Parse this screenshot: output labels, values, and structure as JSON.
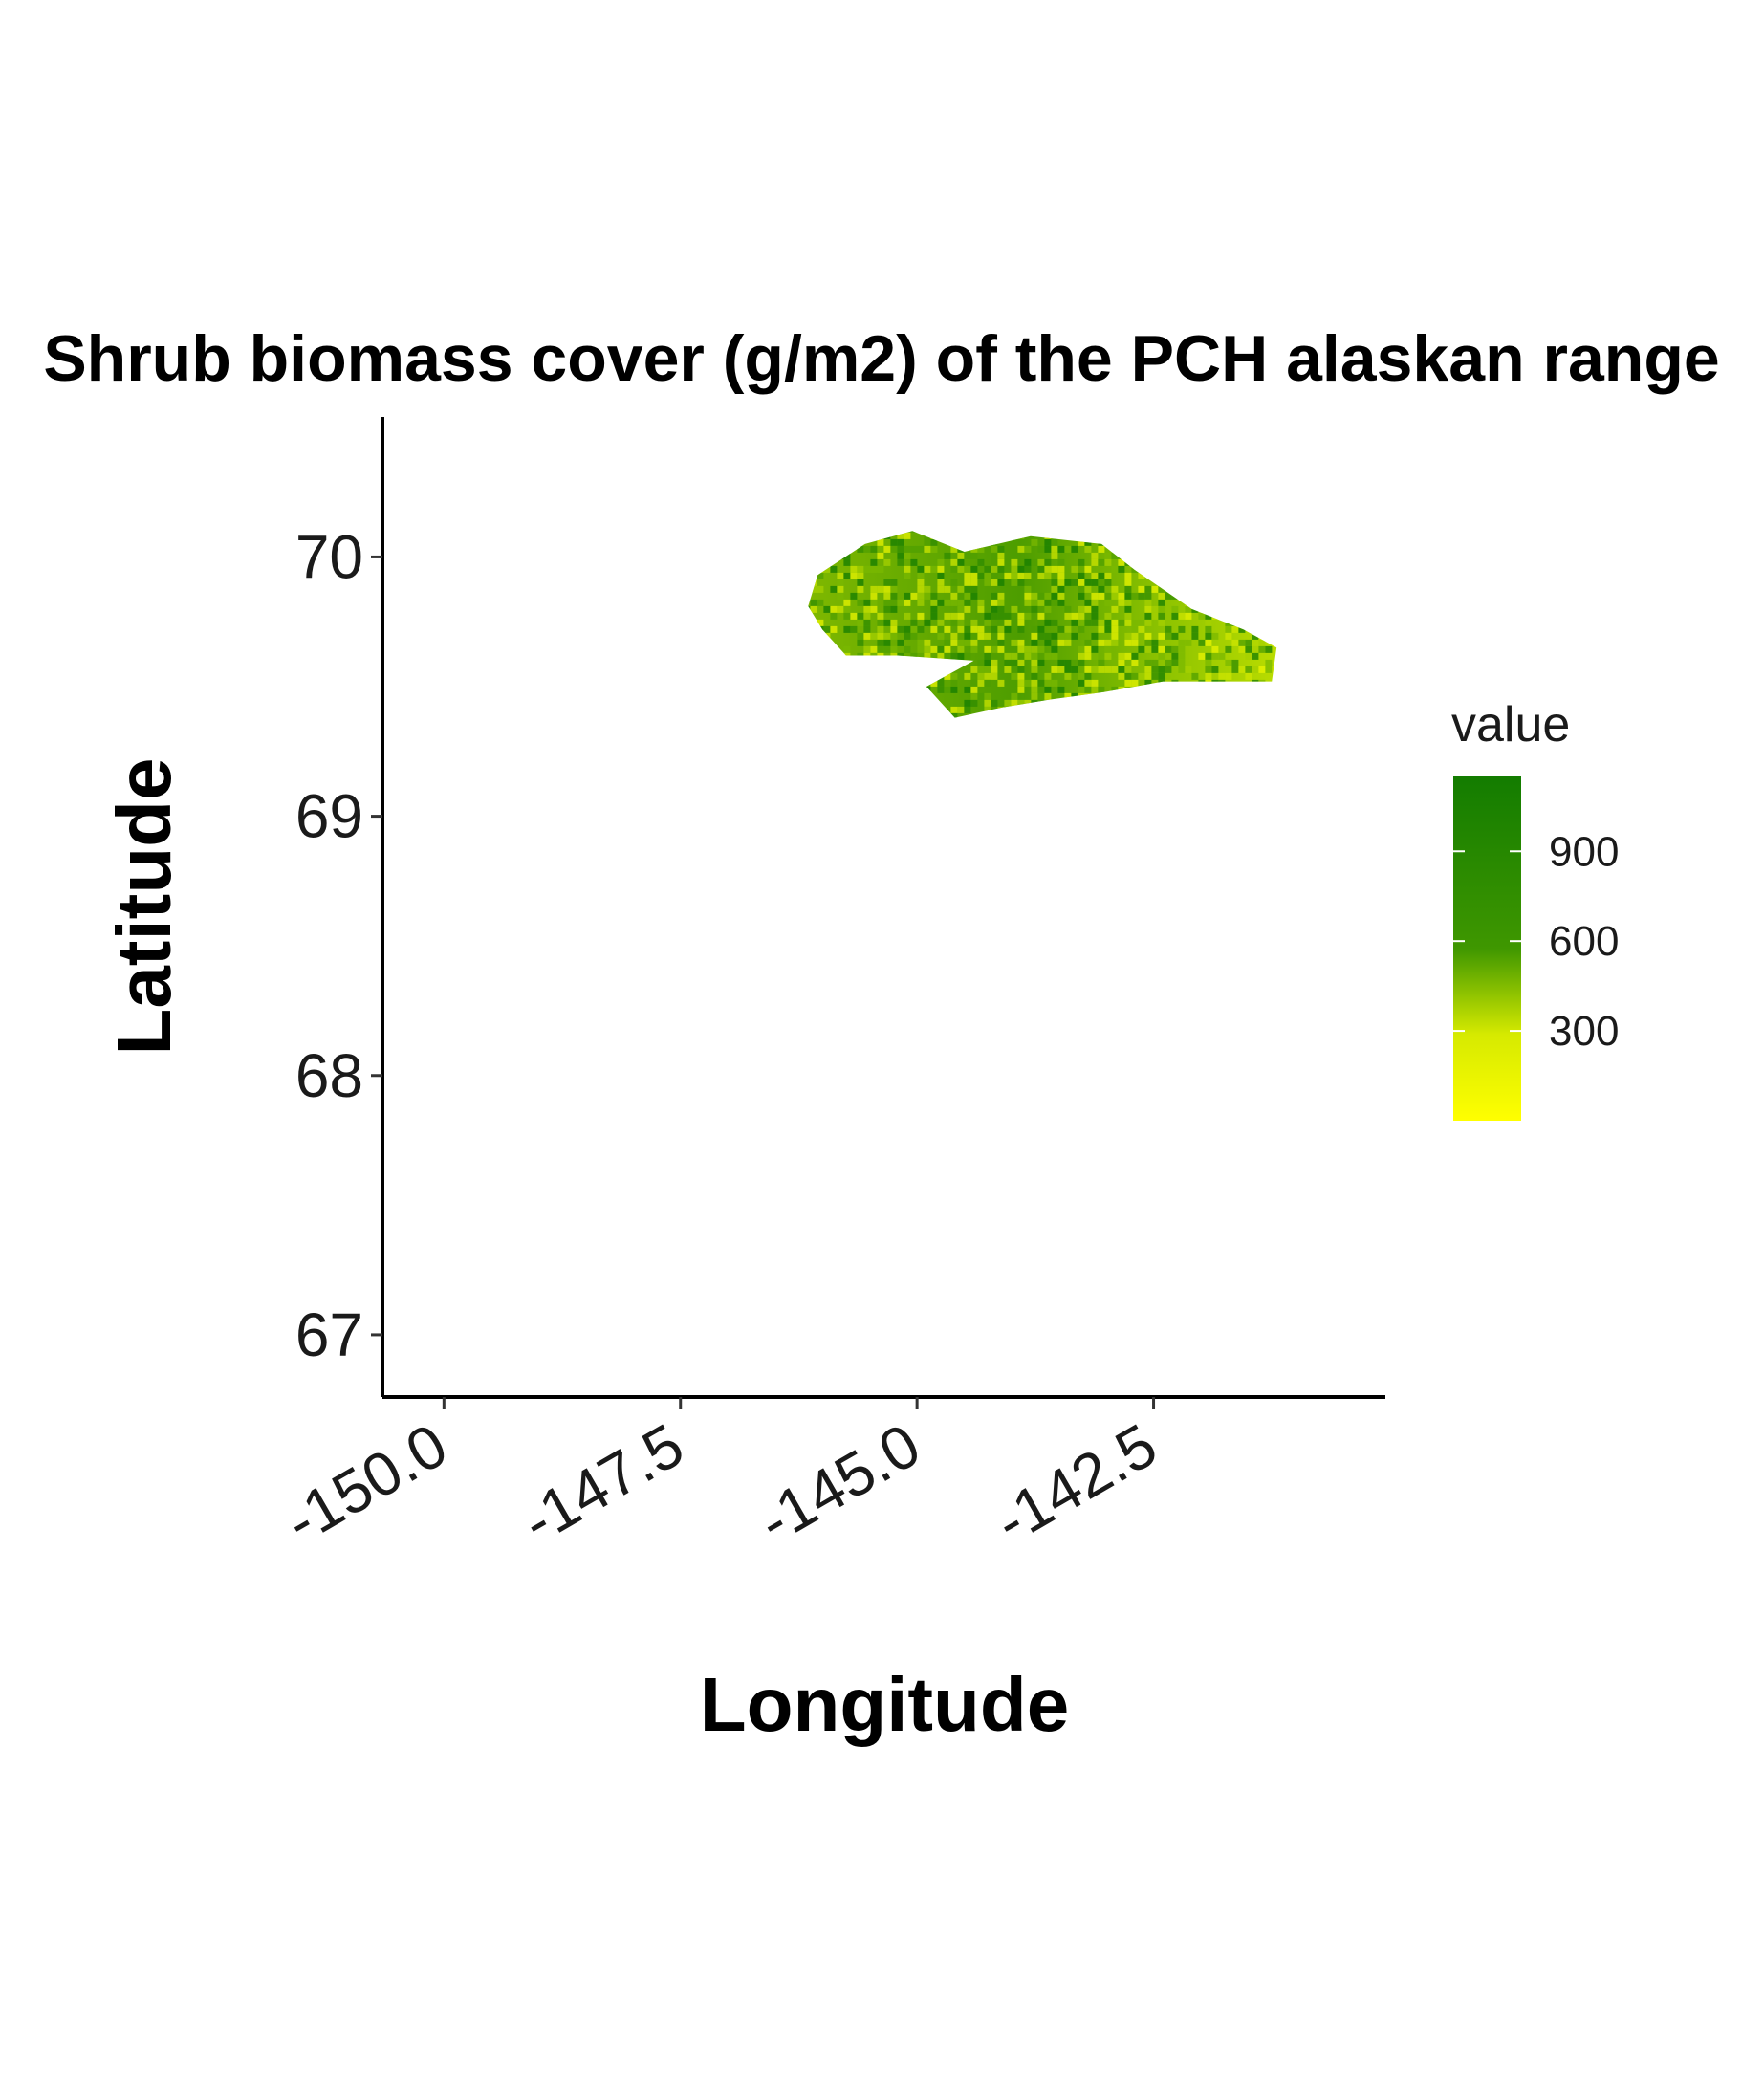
{
  "chart_data": {
    "type": "heatmap",
    "title": "Shrub biomass cover (g/m2) of the PCH alaskan range",
    "xlabel": "Longitude",
    "ylabel": "Latitude",
    "x_ticks": [
      "-150.0",
      "-147.5",
      "-145.0",
      "-142.5"
    ],
    "y_ticks": [
      "67",
      "68",
      "69",
      "70"
    ],
    "xlim": [
      -150.65,
      -140.05
    ],
    "ylim": [
      66.76,
      70.54
    ],
    "grid": false,
    "legend": {
      "title": "value",
      "position": "right",
      "ticks": [
        "300",
        "600",
        "900"
      ],
      "range": [
        0,
        1150
      ],
      "colors": {
        "low": "#ffff00",
        "mid": "#2e8b00",
        "high": "#147d00"
      }
    },
    "region": {
      "outline": [
        [
          -146.0,
          69.72
        ],
        [
          -146.15,
          69.81
        ],
        [
          -146.05,
          69.93
        ],
        [
          -145.55,
          70.05
        ],
        [
          -145.05,
          70.1
        ],
        [
          -144.5,
          70.02
        ],
        [
          -143.8,
          70.08
        ],
        [
          -143.05,
          70.05
        ],
        [
          -142.7,
          69.95
        ],
        [
          -142.1,
          69.8
        ],
        [
          -141.55,
          69.72
        ],
        [
          -141.2,
          69.65
        ],
        [
          -141.25,
          69.52
        ],
        [
          -142.4,
          69.52
        ],
        [
          -143.0,
          69.48
        ],
        [
          -143.6,
          69.45
        ],
        [
          -144.1,
          69.42
        ],
        [
          -144.6,
          69.38
        ],
        [
          -144.9,
          69.5
        ],
        [
          -144.4,
          69.6
        ],
        [
          -145.2,
          69.62
        ],
        [
          -145.75,
          69.62
        ]
      ]
    }
  }
}
